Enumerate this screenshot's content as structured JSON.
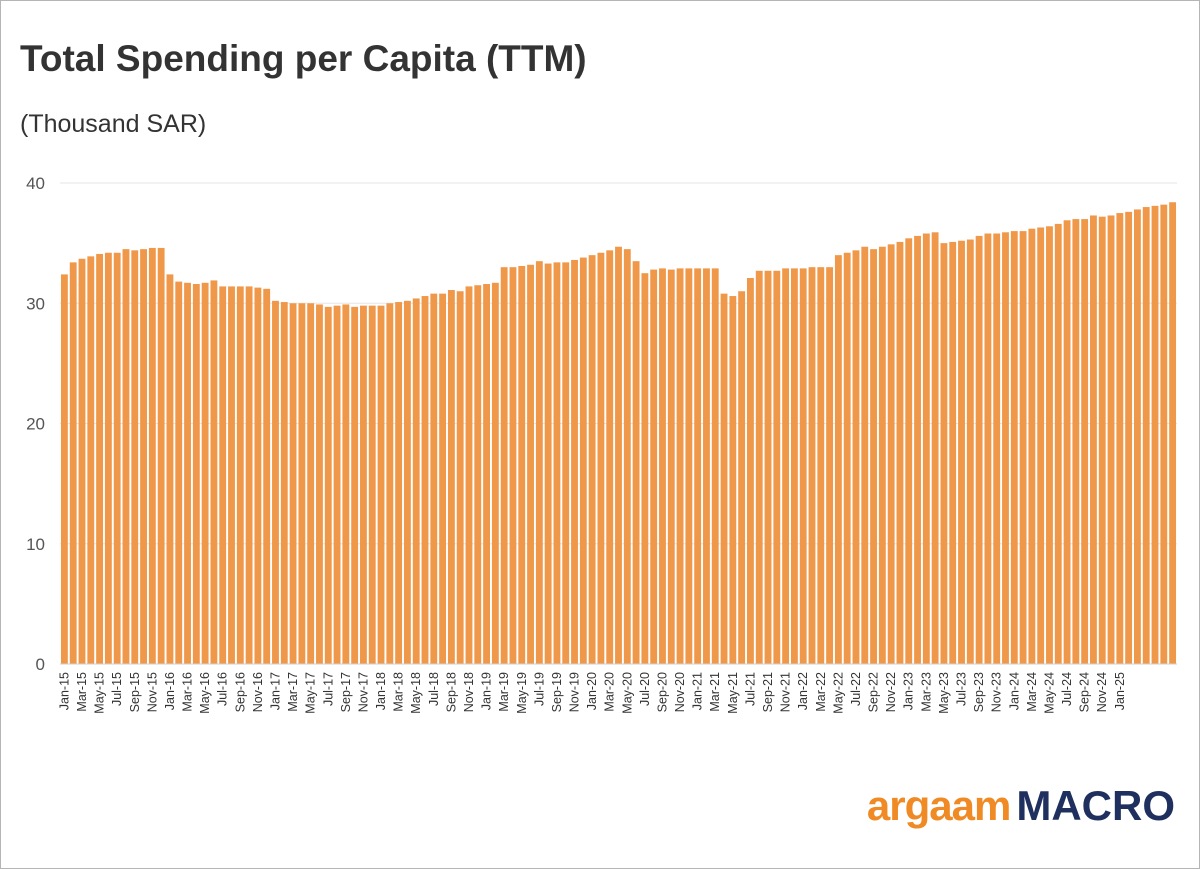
{
  "title": "Total Spending per Capita (TTM)",
  "subtitle": "(Thousand SAR)",
  "logo": {
    "brand": "argaam",
    "product": "MACRO",
    "brand_color": "#f08a24",
    "product_color": "#1f2f5e"
  },
  "chart_data": {
    "type": "bar",
    "bar_color": "#f0984a",
    "ylim": [
      0,
      40
    ],
    "yticks": [
      0,
      10,
      20,
      30,
      40
    ],
    "grid": true,
    "tick_labels": [
      "Jan-15",
      "Mar-15",
      "May-15",
      "Jul-15",
      "Sep-15",
      "Nov-15",
      "Jan-16",
      "Mar-16",
      "May-16",
      "Jul-16",
      "Sep-16",
      "Nov-16",
      "Jan-17",
      "Mar-17",
      "May-17",
      "Jul-17",
      "Sep-17",
      "Nov-17",
      "Jan-18",
      "Mar-18",
      "May-18",
      "Jul-18",
      "Sep-18",
      "Nov-18",
      "Jan-19",
      "Mar-19",
      "May-19",
      "Jul-19",
      "Sep-19",
      "Nov-19",
      "Jan-20",
      "Mar-20",
      "May-20",
      "Jul-20",
      "Sep-20",
      "Nov-20",
      "Jan-21",
      "Mar-21",
      "May-21",
      "Jul-21",
      "Sep-21",
      "Nov-21",
      "Jan-22",
      "Mar-22",
      "May-22",
      "Jul-22",
      "Sep-22",
      "Nov-22",
      "Jan-23",
      "Mar-23",
      "May-23",
      "Jul-23",
      "Sep-23",
      "Nov-23",
      "Jan-24",
      "Mar-24",
      "May-24",
      "Jul-24",
      "Sep-24",
      "Nov-24",
      "Jan-25"
    ],
    "start_period": "Jan-15",
    "values": [
      32.4,
      33.4,
      33.7,
      33.9,
      34.1,
      34.2,
      34.2,
      34.5,
      34.4,
      34.5,
      34.6,
      34.6,
      32.4,
      31.8,
      31.7,
      31.6,
      31.7,
      31.9,
      31.4,
      31.4,
      31.4,
      31.4,
      31.3,
      31.2,
      30.2,
      30.1,
      30.0,
      30.0,
      30.0,
      29.9,
      29.7,
      29.8,
      29.9,
      29.7,
      29.8,
      29.8,
      29.8,
      30.0,
      30.1,
      30.2,
      30.4,
      30.6,
      30.8,
      30.8,
      31.1,
      31.0,
      31.4,
      31.5,
      31.6,
      31.7,
      33.0,
      33.0,
      33.1,
      33.2,
      33.5,
      33.3,
      33.4,
      33.4,
      33.6,
      33.8,
      34.0,
      34.2,
      34.4,
      34.7,
      34.5,
      33.5,
      32.5,
      32.8,
      32.9,
      32.8,
      32.9,
      32.9,
      32.9,
      32.9,
      32.9,
      30.8,
      30.6,
      31.0,
      32.1,
      32.7,
      32.7,
      32.7,
      32.9,
      32.9,
      32.9,
      33.0,
      33.0,
      33.0,
      34.0,
      34.2,
      34.4,
      34.7,
      34.5,
      34.7,
      34.9,
      35.1,
      35.4,
      35.6,
      35.8,
      35.9,
      35.0,
      35.1,
      35.2,
      35.3,
      35.6,
      35.8,
      35.8,
      35.9,
      36.0,
      36.0,
      36.2,
      36.3,
      36.4,
      36.6,
      36.9,
      37.0,
      37.0,
      37.3,
      37.2,
      37.3,
      37.5,
      37.6,
      37.8,
      38.0,
      38.1,
      38.2,
      38.4
    ]
  }
}
